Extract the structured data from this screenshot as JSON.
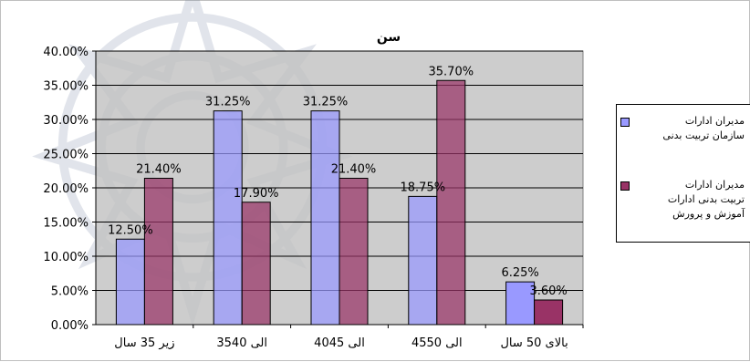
{
  "chart_data": {
    "type": "bar",
    "title": "سن",
    "categories": [
      "زیر 35 سال",
      "35الی 40",
      "40الی 45",
      "45الی 50",
      "بالای 50 سال"
    ],
    "series": [
      {
        "name": "مدیران ادارات سازمان تربیت بدنی",
        "values": [
          12.5,
          31.25,
          31.25,
          18.75,
          6.25
        ],
        "labels": [
          "12.50%",
          "31.25%",
          "31.25%",
          "18.75%",
          "6.25%"
        ],
        "color": "#9999ff"
      },
      {
        "name": "مدیران ادارات تربیت بدنی ادارات آموزش و پرورش",
        "values": [
          21.4,
          17.9,
          21.4,
          35.7,
          3.6
        ],
        "labels": [
          "21.40%",
          "17.90%",
          "21.40%",
          "35.70%",
          "3.60%"
        ],
        "color": "#993366"
      }
    ],
    "yticks": [
      "0.00%",
      "5.00%",
      "10.00%",
      "15.00%",
      "20.00%",
      "25.00%",
      "30.00%",
      "35.00%",
      "40.00%"
    ],
    "ylim": [
      0,
      40
    ],
    "plot_background": "#c0c0c0",
    "grid": true,
    "legend_position": "right"
  },
  "legend": {
    "items": [
      {
        "line1": "مدیران ادارات",
        "line2": "سازمان تربیت بدنی"
      },
      {
        "line1": "مدیران ادارات",
        "line2": "تربیت بدنی ادارات",
        "line3": "آموزش و پرورش"
      }
    ]
  }
}
